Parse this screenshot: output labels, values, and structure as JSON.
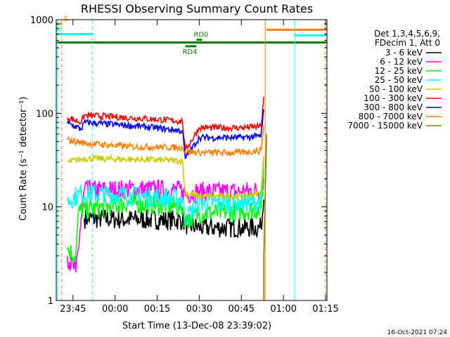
{
  "chart_data": {
    "type": "line",
    "title": "RHESSI Observing Summary Count Rates",
    "xlabel": "Start Time (13-Dec-08 23:39:02)",
    "ylabel": "Count Rate (s⁻¹ detector⁻¹)",
    "yscale": "log",
    "ylim": [
      1,
      1000
    ],
    "xlim": [
      "23:39:02",
      "01:15:30"
    ],
    "x_ticks": [
      "23:45",
      "00:00",
      "00:15",
      "00:30",
      "00:45",
      "01:00",
      "01:15"
    ],
    "y_ticks": [
      "1",
      "10",
      "100",
      "1000"
    ],
    "legend_header": [
      "Det 1,3,4,5,6,9,",
      "FDecim 1, Att 0"
    ],
    "legend_position": "right",
    "series": [
      {
        "name": "3 - 6 keV",
        "color": "#000000",
        "points": [
          [
            "23:49",
            7.5
          ],
          [
            "00:24",
            7.2
          ],
          [
            "00:25",
            6.5
          ],
          [
            "00:30",
            6.0
          ],
          [
            "00:45",
            6.0
          ],
          [
            "00:52",
            6.0
          ],
          [
            "00:53",
            12.0
          ]
        ]
      },
      {
        "name": "6 - 12 keV",
        "color": "#ff00ff",
        "points": [
          [
            "23:43",
            3.0
          ],
          [
            "23:46",
            2.0
          ],
          [
            "23:49",
            15.0
          ],
          [
            "00:10",
            15.5
          ],
          [
            "00:24",
            15.0
          ],
          [
            "00:25",
            13.5
          ],
          [
            "00:30",
            14.5
          ],
          [
            "00:45",
            14.5
          ],
          [
            "00:52",
            15.0
          ],
          [
            "00:53",
            20.0
          ]
        ]
      },
      {
        "name": "12 - 25 keV",
        "color": "#00ff00",
        "points": [
          [
            "23:43",
            3.5
          ],
          [
            "23:46",
            3.0
          ],
          [
            "23:47",
            9.0
          ],
          [
            "00:05",
            11.0
          ],
          [
            "00:24",
            10.0
          ],
          [
            "00:25",
            7.0
          ],
          [
            "00:30",
            8.5
          ],
          [
            "00:45",
            9.0
          ],
          [
            "00:52",
            9.5
          ],
          [
            "00:53",
            25.0
          ]
        ]
      },
      {
        "name": "25 - 50 keV",
        "color": "#00ffff",
        "points": [
          [
            "23:43",
            11.5
          ],
          [
            "23:48",
            14.0
          ],
          [
            "00:10",
            13.0
          ],
          [
            "00:24",
            12.0
          ],
          [
            "00:25",
            7.5
          ],
          [
            "00:30",
            11.0
          ],
          [
            "00:45",
            11.0
          ],
          [
            "00:52",
            11.5
          ],
          [
            "00:53",
            30.0
          ]
        ]
      },
      {
        "name": "50 - 100 keV",
        "color": "#cccc00",
        "points": [
          [
            "23:43",
            30.0
          ],
          [
            "23:49",
            33.0
          ],
          [
            "00:10",
            32.0
          ],
          [
            "00:24",
            31.0
          ],
          [
            "00:25",
            14.0
          ],
          [
            "00:30",
            13.0
          ],
          [
            "00:45",
            13.0
          ],
          [
            "00:52",
            14.0
          ],
          [
            "00:53",
            35.0
          ]
        ]
      },
      {
        "name": "100 - 300 keV",
        "color": "#ff0000",
        "points": [
          [
            "23:43",
            90.0
          ],
          [
            "23:48",
            80.0
          ],
          [
            "23:49",
            95.0
          ],
          [
            "00:10",
            88.0
          ],
          [
            "00:24",
            82.0
          ],
          [
            "00:25",
            40.0
          ],
          [
            "00:30",
            70.0
          ],
          [
            "00:45",
            70.0
          ],
          [
            "00:52",
            72.0
          ],
          [
            "00:53",
            150.0
          ]
        ]
      },
      {
        "name": "300 - 800 keV",
        "color": "#0000ff",
        "points": [
          [
            "23:43",
            78.0
          ],
          [
            "23:48",
            68.0
          ],
          [
            "23:49",
            80.0
          ],
          [
            "00:10",
            72.0
          ],
          [
            "00:24",
            65.0
          ],
          [
            "00:25",
            33.0
          ],
          [
            "00:30",
            55.0
          ],
          [
            "00:45",
            55.0
          ],
          [
            "00:52",
            57.0
          ],
          [
            "00:53",
            110.0
          ]
        ]
      },
      {
        "name": "800 - 7000 keV",
        "color": "#ff8000",
        "points": [
          [
            "23:43",
            52.0
          ],
          [
            "23:49",
            48.0
          ],
          [
            "00:05",
            44.0
          ],
          [
            "00:24",
            43.0
          ],
          [
            "00:25",
            39.0
          ],
          [
            "00:30",
            38.0
          ],
          [
            "00:45",
            38.0
          ],
          [
            "00:52",
            40.0
          ],
          [
            "00:53",
            75.0
          ]
        ]
      },
      {
        "name": "7000 - 15000 keV",
        "color": "#808000",
        "points": [
          [
            "00:53",
            1.0
          ],
          [
            "00:53",
            3.0
          ],
          [
            "00:54",
            60.0
          ]
        ]
      }
    ],
    "flag_bars": [
      {
        "label": "S",
        "color": "#ff8000",
        "start": "23:39:02",
        "end": "23:41:00",
        "level": 900
      },
      {
        "label": "N",
        "color": "#00ffff",
        "start": "23:39:02",
        "end": "23:52:00",
        "level": 700
      },
      {
        "label": "",
        "color": "#008000",
        "start": "23:39:02",
        "end": "01:15:30",
        "level": 570
      },
      {
        "label": "RD0",
        "color": "#008000",
        "start": "00:29:00",
        "end": "00:31:00",
        "level": 610
      },
      {
        "label": "RD4",
        "color": "#008000",
        "start": "00:25:00",
        "end": "00:29:00",
        "level": 520
      },
      {
        "label": "",
        "color": "#ff8000",
        "start": "00:54:00",
        "end": "01:15:30",
        "level": 780
      },
      {
        "label": "",
        "color": "#00ffff",
        "start": "01:04:00",
        "end": "01:15:30",
        "level": 680
      }
    ],
    "vlines": [
      {
        "time": "23:39:30",
        "color": "#00ffff",
        "style": "solid"
      },
      {
        "time": "23:41:00",
        "color": "#ff8000",
        "style": "dashed"
      },
      {
        "time": "23:52:00",
        "color": "#00ffff",
        "style": "dashed"
      },
      {
        "time": "00:53:30",
        "color": "#ff8000",
        "style": "solid"
      },
      {
        "time": "01:04:00",
        "color": "#00ffff",
        "style": "solid"
      },
      {
        "time": "01:15:00",
        "color": "#ff8000",
        "style": "dashed"
      }
    ],
    "footer_date": "16-Oct-2021 07:24"
  }
}
